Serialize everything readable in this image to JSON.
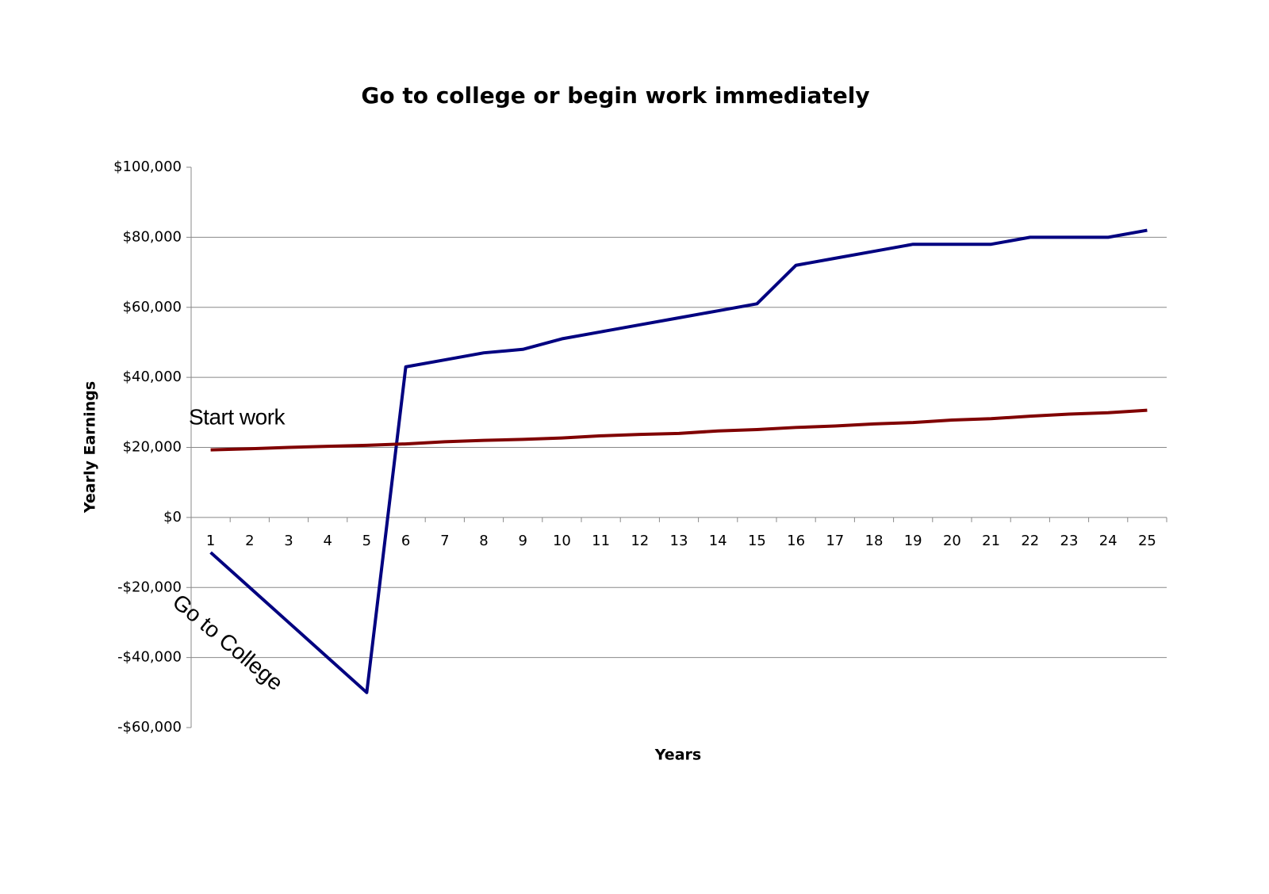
{
  "chart_data": {
    "type": "line",
    "title": "Go to college or begin work immediately",
    "x_label": "Years",
    "y_label": "Yearly Earnings",
    "categories": [
      "1",
      "2",
      "3",
      "4",
      "5",
      "6",
      "7",
      "8",
      "9",
      "10",
      "11",
      "12",
      "13",
      "14",
      "15",
      "16",
      "17",
      "18",
      "19",
      "20",
      "21",
      "22",
      "23",
      "24",
      "25"
    ],
    "series": [
      {
        "name": "Go to College",
        "color": "#000080",
        "values": [
          -10000,
          -20000,
          -30000,
          -40000,
          -50000,
          43000,
          45000,
          47000,
          48000,
          51000,
          53000,
          55000,
          57000,
          59000,
          61000,
          72000,
          74000,
          76000,
          78000,
          78000,
          78000,
          80000,
          80000,
          80000,
          82000
        ]
      },
      {
        "name": "Start work",
        "color": "#800000",
        "values": [
          19300,
          19600,
          20000,
          20300,
          20600,
          21000,
          21600,
          22000,
          22300,
          22700,
          23300,
          23700,
          24000,
          24700,
          25100,
          25700,
          26100,
          26700,
          27100,
          27800,
          28200,
          28900,
          29500,
          29900,
          30600
        ]
      }
    ],
    "ylim": [
      -60000,
      100000
    ],
    "yticks": [
      {
        "value": -60000,
        "label": "-$60,000"
      },
      {
        "value": -40000,
        "label": "-$40,000"
      },
      {
        "value": -20000,
        "label": "-$20,000"
      },
      {
        "value": 0,
        "label": "$0"
      },
      {
        "value": 20000,
        "label": "$20,000"
      },
      {
        "value": 40000,
        "label": "$40,000"
      },
      {
        "value": 60000,
        "label": "$60,000"
      },
      {
        "value": 80000,
        "label": "$80,000"
      },
      {
        "value": 100000,
        "label": "$100,000"
      }
    ],
    "grid": true
  }
}
